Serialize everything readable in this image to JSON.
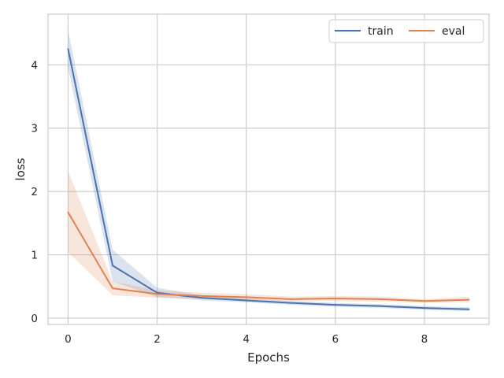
{
  "chart_data": {
    "type": "line",
    "title": "",
    "xlabel": "Epochs",
    "ylabel": "loss",
    "xlim": [
      -0.45,
      9.45
    ],
    "ylim": [
      -0.1,
      4.8
    ],
    "xticks": [
      0,
      2,
      4,
      6,
      8
    ],
    "yticks": [
      0,
      1,
      2,
      3,
      4
    ],
    "grid": true,
    "legend_position": "top-right",
    "x": [
      0,
      1,
      2,
      3,
      4,
      5,
      6,
      7,
      8,
      9
    ],
    "series": [
      {
        "name": "train",
        "color": "#4c72b0",
        "values": [
          4.25,
          0.83,
          0.4,
          0.32,
          0.28,
          0.24,
          0.21,
          0.19,
          0.16,
          0.14
        ],
        "band_lower": [
          3.95,
          0.58,
          0.33,
          0.28,
          0.25,
          0.21,
          0.18,
          0.16,
          0.13,
          0.11
        ],
        "band_upper": [
          4.55,
          1.08,
          0.48,
          0.36,
          0.31,
          0.27,
          0.24,
          0.22,
          0.19,
          0.17
        ]
      },
      {
        "name": "eval",
        "color": "#dd8452",
        "values": [
          1.67,
          0.47,
          0.38,
          0.35,
          0.33,
          0.3,
          0.31,
          0.3,
          0.27,
          0.29
        ],
        "band_lower": [
          1.04,
          0.36,
          0.32,
          0.31,
          0.29,
          0.27,
          0.27,
          0.26,
          0.24,
          0.25
        ],
        "band_upper": [
          2.32,
          0.58,
          0.44,
          0.4,
          0.38,
          0.34,
          0.35,
          0.34,
          0.3,
          0.34
        ]
      }
    ]
  }
}
